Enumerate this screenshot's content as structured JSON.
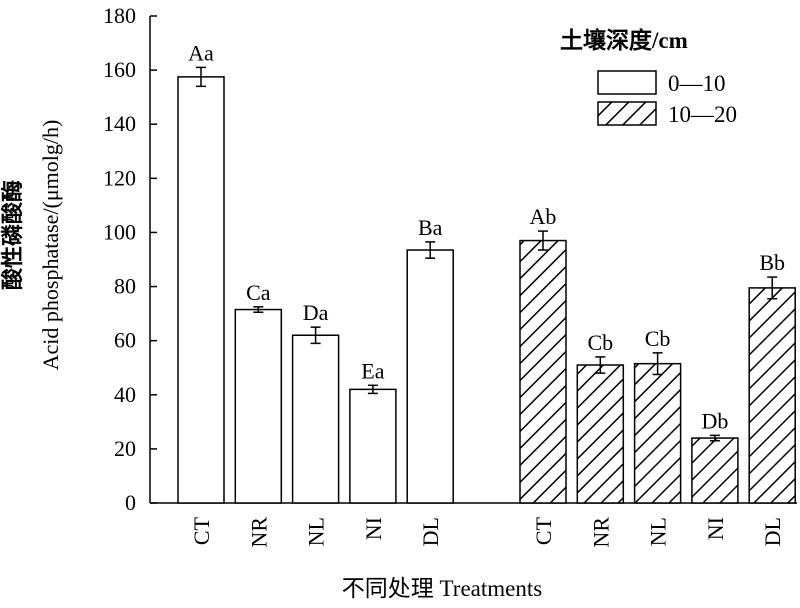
{
  "chart_data": {
    "type": "bar",
    "ylabel_cn": "酸性磷酸酶",
    "ylabel_en": "Acid phosphatase/(μmolg/h)",
    "xlabel": "不同处理 Treatments",
    "ylim": [
      0,
      180
    ],
    "yticks": [
      0,
      20,
      40,
      60,
      80,
      100,
      120,
      140,
      160,
      180
    ],
    "legend": {
      "title": "土壤深度/cm",
      "position": "top-right"
    },
    "categories": [
      "CT",
      "NR",
      "NL",
      "NI",
      "DL"
    ],
    "series": [
      {
        "name": "0—10",
        "style": "white",
        "values": [
          157.5,
          71.5,
          62,
          42,
          93.5
        ],
        "errors": [
          3.5,
          1,
          3,
          1.5,
          3
        ],
        "labels": [
          "Aa",
          "Ca",
          "Da",
          "Ea",
          "Ba"
        ]
      },
      {
        "name": "10—20",
        "style": "hatched",
        "values": [
          97,
          51,
          51.5,
          24,
          79.5
        ],
        "errors": [
          3.5,
          3,
          4,
          1,
          4
        ],
        "labels": [
          "Ab",
          "Cb",
          "Cb",
          "Db",
          "Bb"
        ]
      }
    ]
  }
}
